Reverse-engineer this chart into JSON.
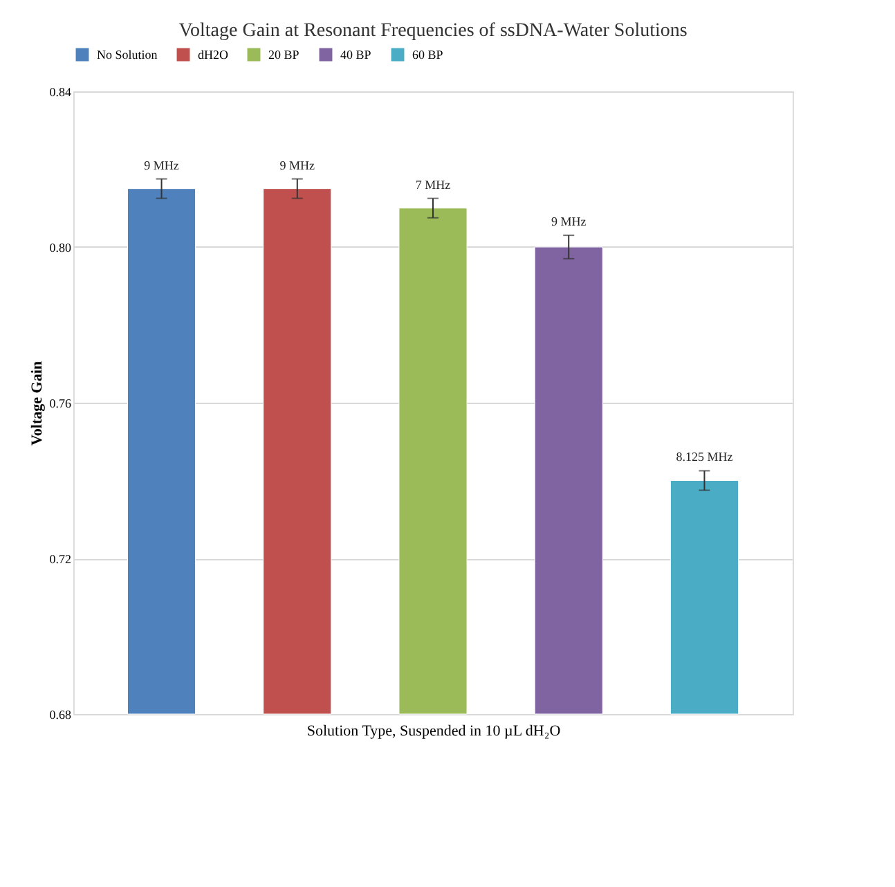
{
  "chart_data": {
    "type": "bar",
    "title": "Voltage Gain at Resonant Frequencies of ssDNA-Water Solutions",
    "xlabel": "Solution Type, Suspended in 10 µL dH₂O",
    "ylabel": "Voltage Gain",
    "categories": [
      null,
      null,
      null,
      null,
      null
    ],
    "series": [
      {
        "name": "No Solution",
        "color": "#4f81bd",
        "values": [
          0.815,
          null,
          null,
          null,
          null
        ],
        "errors": [
          0.0025,
          null,
          null,
          null,
          null
        ]
      },
      {
        "name": "dH2O",
        "color": "#c0504d",
        "values": [
          null,
          0.815,
          null,
          null,
          null
        ],
        "errors": [
          null,
          0.0025,
          null,
          null,
          null
        ]
      },
      {
        "name": "20 BP",
        "color": "#9bbb59",
        "values": [
          null,
          null,
          0.81,
          null,
          null
        ],
        "errors": [
          null,
          null,
          0.0025,
          null,
          null
        ]
      },
      {
        "name": "40 BP",
        "color": "#8064a2",
        "values": [
          null,
          null,
          null,
          0.8,
          null
        ],
        "errors": [
          null,
          null,
          null,
          0.003,
          null
        ]
      },
      {
        "name": "60 BP",
        "color": "#4bacc6",
        "values": [
          null,
          null,
          null,
          null,
          0.74
        ],
        "errors": [
          null,
          null,
          null,
          null,
          0.0025
        ]
      }
    ],
    "annotations": [
      {
        "text": "9 MHz",
        "y": 0.815
      },
      {
        "text": "9 MHz",
        "y": 0.815
      },
      {
        "text": "7 MHz",
        "y": 0.81
      },
      {
        "text": "9 MHz",
        "y": 0.8
      },
      {
        "text": "8.125 MHz",
        "y": 0.74
      }
    ],
    "ylim": [
      0.68,
      0.84
    ],
    "yticks": [
      0.68,
      0.72,
      0.76,
      {
        "value": 0.8,
        "label": "0.80"
      },
      0.84
    ],
    "grid": "y",
    "legend": "top"
  }
}
